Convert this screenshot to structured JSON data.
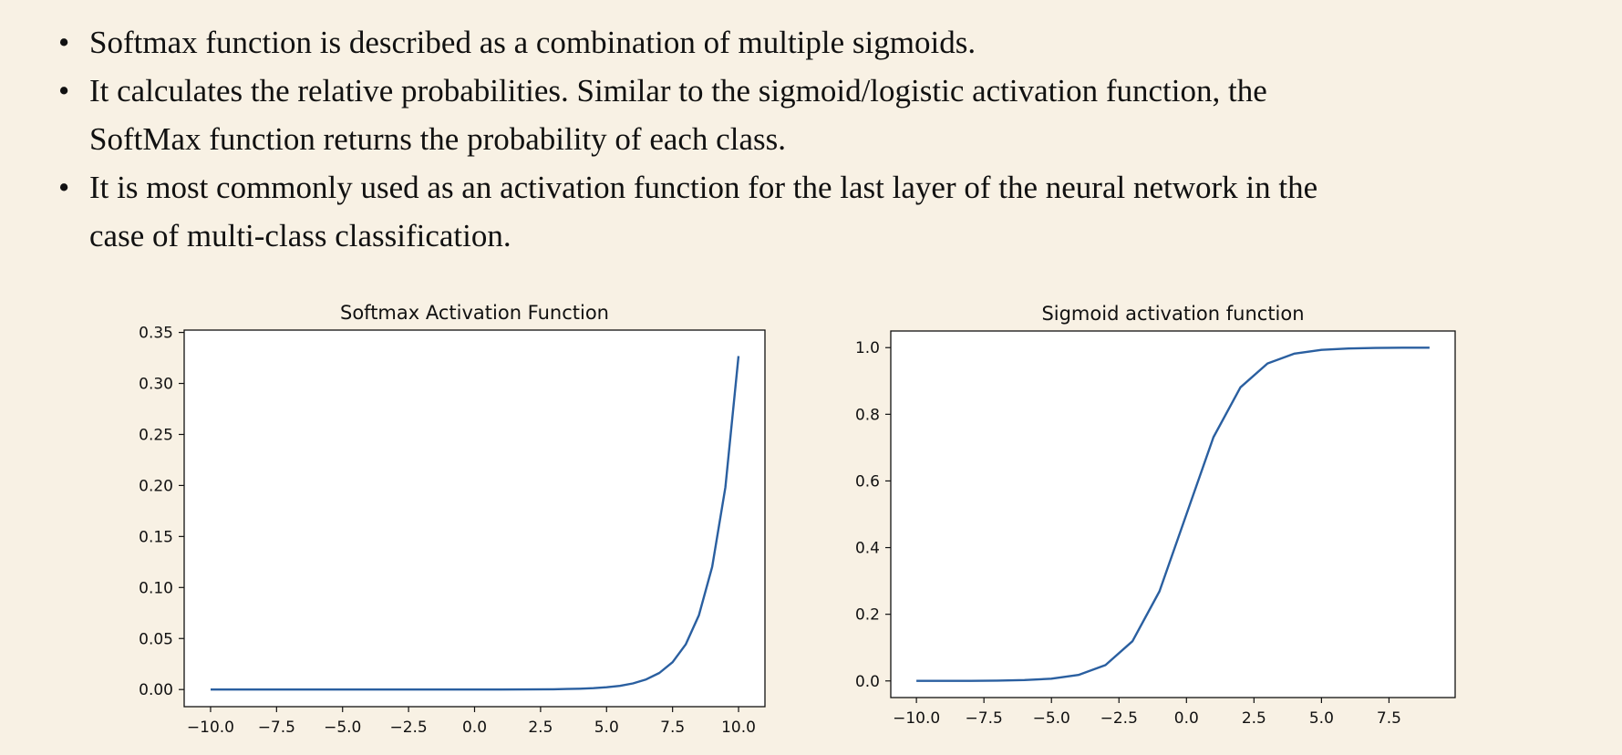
{
  "slide": {
    "bullets": [
      "Softmax function is described as a combination of multiple sigmoids.",
      "It calculates the relative probabilities. Similar to the sigmoid/logistic activation function, the SoftMax function returns the probability of each class.",
      "It is most commonly used as an activation function for the last layer of the neural network in the case of multi-class classification."
    ],
    "bullet_glyph": "•"
  },
  "colors": {
    "background": "#f8f1e4",
    "line": "#2a5fa0",
    "axes": "#111111",
    "plot_bg": "#ffffff"
  },
  "chart_data": [
    {
      "type": "line",
      "title": "Softmax Activation Function",
      "xlabel": "",
      "ylabel": "",
      "xlim": [
        -11.0,
        11.0
      ],
      "ylim": [
        -0.0168,
        0.3523
      ],
      "grid": false,
      "legend": "none",
      "xticks": [
        -10.0,
        -7.5,
        -5.0,
        -2.5,
        0.0,
        2.5,
        5.0,
        7.5,
        10.0
      ],
      "xtick_labels": [
        "−10.0",
        "−7.5",
        "−5.0",
        "−2.5",
        "0.0",
        "2.5",
        "5.0",
        "7.5",
        "10.0"
      ],
      "yticks": [
        0.0,
        0.05,
        0.1,
        0.15,
        0.2,
        0.25,
        0.3,
        0.35
      ],
      "ytick_labels": [
        "0.00",
        "0.05",
        "0.10",
        "0.15",
        "0.20",
        "0.25",
        "0.30",
        "0.35"
      ],
      "series": [
        {
          "x": [
            -10,
            -9,
            -8,
            -7,
            -6,
            -5,
            -4,
            -3,
            -2,
            -1,
            0,
            1,
            2,
            3,
            3.5,
            4,
            4.5,
            5,
            5.5,
            6,
            6.5,
            7,
            7.5,
            8,
            8.5,
            9,
            9.5,
            10
          ],
          "y": [
            0,
            0,
            0,
            0,
            0,
            0,
            0,
            0,
            0,
            0,
            0,
            0,
            0.0001,
            0.0003,
            0.0005,
            0.0008,
            0.0013,
            0.0022,
            0.0036,
            0.006,
            0.0099,
            0.0163,
            0.0268,
            0.0442,
            0.0729,
            0.1202,
            0.1982,
            0.3268
          ]
        }
      ]
    },
    {
      "type": "line",
      "title": "Sigmoid activation function",
      "xlabel": "",
      "ylabel": "",
      "xlim": [
        -10.95,
        9.95
      ],
      "ylim": [
        -0.0499,
        1.0499
      ],
      "grid": false,
      "legend": "none",
      "xticks": [
        -10.0,
        -7.5,
        -5.0,
        -2.5,
        0.0,
        2.5,
        5.0,
        7.5
      ],
      "xtick_labels": [
        "−10.0",
        "−7.5",
        "−5.0",
        "−2.5",
        "0.0",
        "2.5",
        "5.0",
        "7.5"
      ],
      "yticks": [
        0.0,
        0.2,
        0.4,
        0.6,
        0.8,
        1.0
      ],
      "ytick_labels": [
        "0.0",
        "0.2",
        "0.4",
        "0.6",
        "0.8",
        "1.0"
      ],
      "series": [
        {
          "x": [
            -10,
            -9,
            -8,
            -7,
            -6,
            -5,
            -4,
            -3,
            -2,
            -1,
            0,
            1,
            2,
            3,
            4,
            5,
            6,
            7,
            8,
            9
          ],
          "y": [
            5e-05,
            0.0001,
            0.0003,
            0.0009,
            0.0025,
            0.0067,
            0.018,
            0.0474,
            0.1192,
            0.2689,
            0.5,
            0.7311,
            0.8808,
            0.9526,
            0.982,
            0.9933,
            0.9975,
            0.9991,
            0.9997,
            0.9999
          ]
        }
      ]
    }
  ]
}
